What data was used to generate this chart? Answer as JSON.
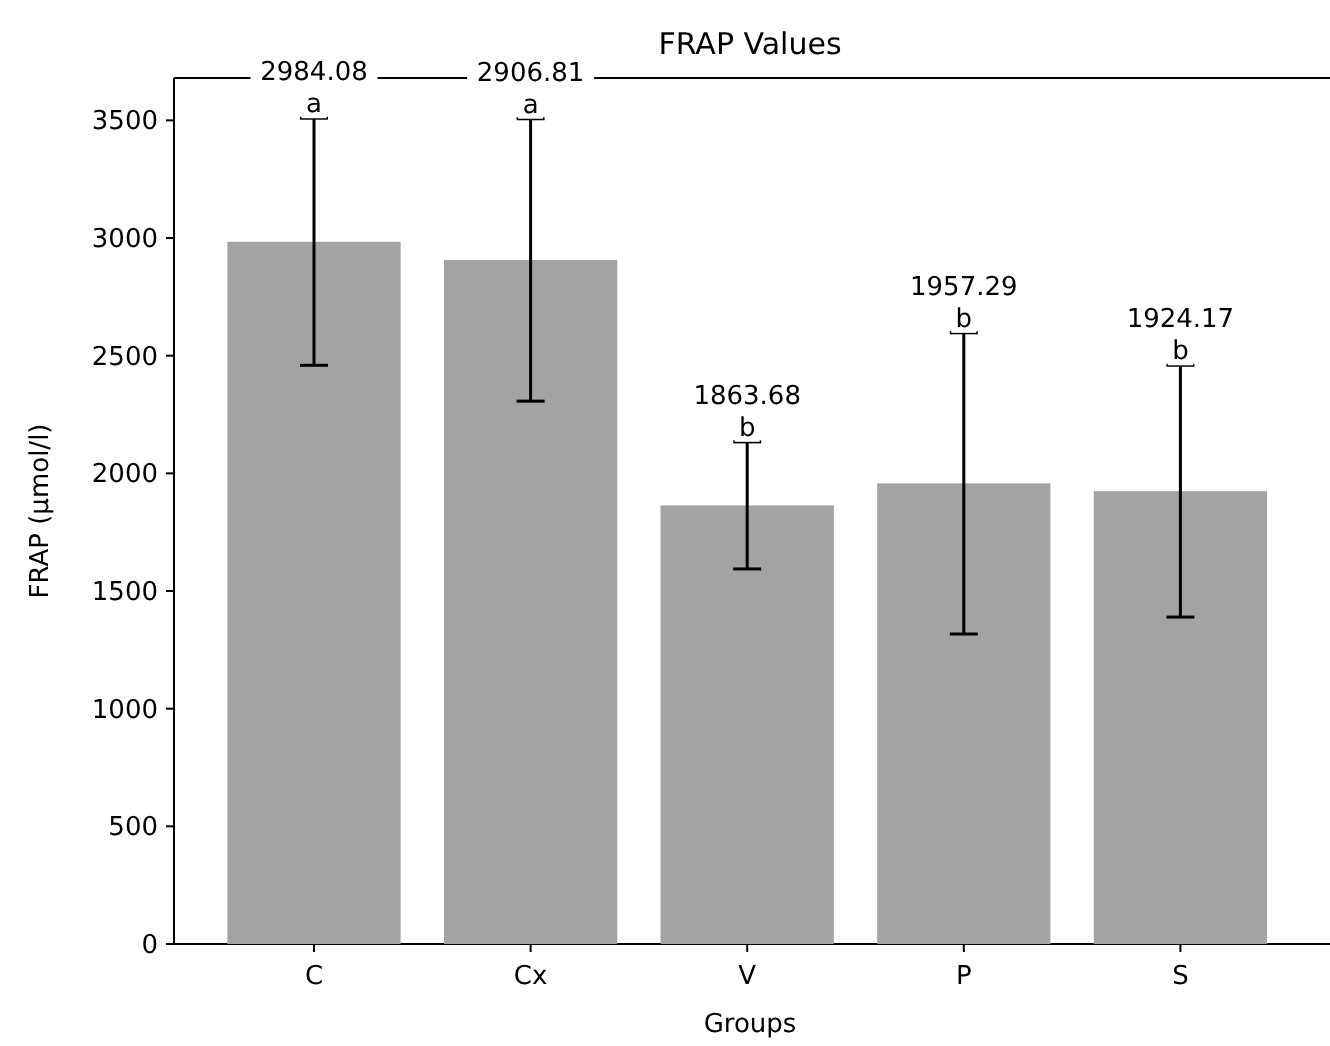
{
  "chart_data": {
    "type": "bar",
    "title": "FRAP Values",
    "xlabel": "Groups",
    "ylabel": "FRAP (µmol/l)",
    "categories": [
      "C",
      "Cx",
      "V",
      "P",
      "S"
    ],
    "values": [
      2984.08,
      2906.81,
      1863.68,
      1957.29,
      1924.17
    ],
    "errors": [
      525,
      600,
      270,
      640,
      535
    ],
    "color": "#a3a3a3",
    "ylim": [
      0,
      3680
    ],
    "yticks": [
      0,
      500,
      1000,
      1500,
      2000,
      2500,
      3000,
      3500
    ],
    "annotations": [
      {
        "text": "a",
        "x": "C",
        "y": 3509
      },
      {
        "text": "a",
        "x": "Cx",
        "y": 3507
      },
      {
        "text": "b",
        "x": "V",
        "y": 2134
      },
      {
        "text": "b",
        "x": "P",
        "y": 2597
      },
      {
        "text": "b",
        "x": "S",
        "y": 2459
      },
      {
        "text": "2984.08",
        "x": "C",
        "y": 3509
      },
      {
        "text": "2906.81",
        "x": "Cx",
        "y": 3507
      },
      {
        "text": "1863.68",
        "x": "V",
        "y": 2134
      },
      {
        "text": "1957.29",
        "x": "P",
        "y": 2597
      },
      {
        "text": "1924.17",
        "x": "S",
        "y": 2459
      }
    ],
    "grid": false
  }
}
